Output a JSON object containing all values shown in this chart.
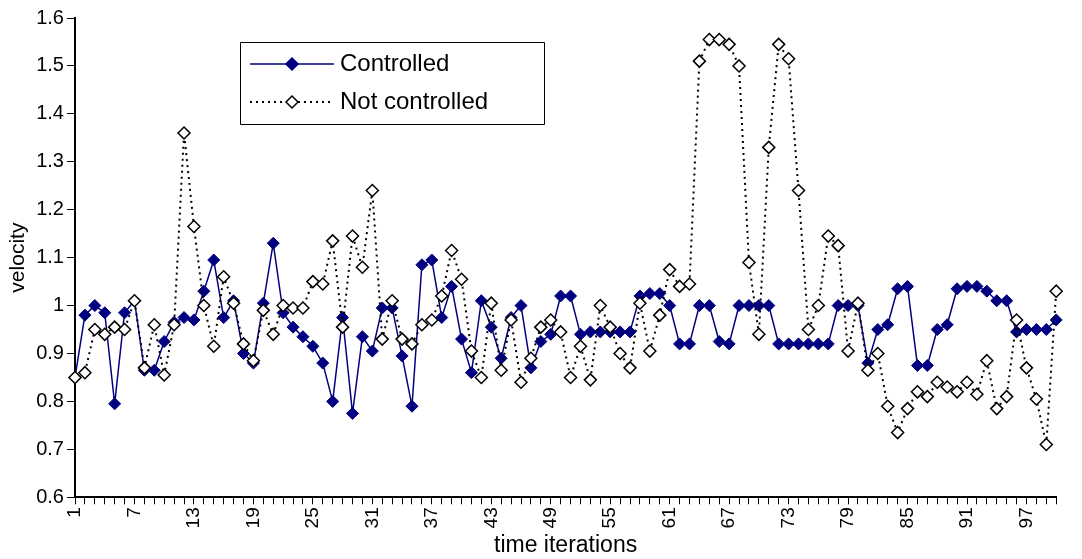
{
  "chart_data": {
    "type": "line",
    "xlabel": "time iterations",
    "ylabel": "velocity",
    "categories": [
      "1",
      null,
      null,
      null,
      null,
      null,
      "7",
      null,
      null,
      null,
      null,
      null,
      "13",
      null,
      null,
      null,
      null,
      null,
      "19",
      null,
      null,
      null,
      null,
      null,
      "25",
      null,
      null,
      null,
      null,
      null,
      "31",
      null,
      null,
      null,
      null,
      null,
      "37",
      null,
      null,
      null,
      null,
      null,
      "43",
      null,
      null,
      null,
      null,
      null,
      "49",
      null,
      null,
      null,
      null,
      null,
      "55",
      null,
      null,
      null,
      null,
      null,
      "61",
      null,
      null,
      null,
      null,
      null,
      "67",
      null,
      null,
      null,
      null,
      null,
      "73",
      null,
      null,
      null,
      null,
      null,
      "79",
      null,
      null,
      null,
      null,
      null,
      "85",
      null,
      null,
      null,
      null,
      null,
      "91",
      null,
      null,
      null,
      null,
      null,
      "97",
      null,
      null,
      null
    ],
    "series": [
      {
        "name": "Controlled",
        "color": "#000080",
        "line_style": "solid",
        "marker": "diamond",
        "values": [
          0.85,
          0.98,
          1.0,
          0.985,
          0.795,
          0.985,
          1.01,
          0.865,
          0.865,
          0.925,
          0.965,
          0.975,
          0.97,
          1.03,
          1.095,
          0.975,
          1.01,
          0.9,
          0.88,
          1.005,
          1.13,
          0.985,
          0.955,
          0.935,
          0.915,
          0.88,
          0.8,
          0.975,
          0.775,
          0.935,
          0.905,
          0.995,
          0.995,
          0.895,
          0.79,
          1.085,
          1.095,
          0.975,
          1.04,
          0.93,
          0.86,
          1.01,
          0.955,
          0.89,
          0.975,
          1.0,
          0.87,
          0.925,
          0.94,
          1.02,
          1.02,
          0.94,
          0.945,
          0.945,
          0.945,
          0.945,
          0.945,
          1.02,
          1.025,
          1.025,
          1.0,
          0.92,
          0.92,
          1.0,
          1.0,
          0.925,
          0.92,
          1.0,
          1.0,
          1.0,
          1.0,
          0.92,
          0.92,
          0.92,
          0.92,
          0.92,
          0.92,
          1.0,
          1.0,
          1.0,
          0.88,
          0.95,
          0.96,
          1.035,
          1.04,
          0.875,
          0.875,
          0.95,
          0.96,
          1.035,
          1.04,
          1.04,
          1.03,
          1.01,
          1.01,
          0.945,
          0.95,
          0.95,
          0.95,
          0.97
        ]
      },
      {
        "name": "Not controlled",
        "color": "#000000",
        "line_style": "dotted",
        "marker": "diamond",
        "values": [
          0.85,
          0.86,
          0.95,
          0.94,
          0.955,
          0.95,
          1.01,
          0.87,
          0.96,
          0.855,
          0.96,
          1.36,
          1.165,
          1.0,
          0.915,
          1.06,
          1.005,
          0.92,
          0.885,
          0.99,
          0.94,
          1.0,
          0.995,
          0.995,
          1.05,
          1.045,
          1.135,
          0.955,
          1.145,
          1.08,
          1.24,
          0.93,
          1.01,
          0.93,
          0.92,
          0.96,
          0.97,
          1.02,
          1.115,
          1.055,
          0.905,
          0.85,
          1.005,
          0.865,
          0.97,
          0.84,
          0.89,
          0.955,
          0.97,
          0.945,
          0.85,
          0.915,
          0.845,
          1.0,
          0.955,
          0.9,
          0.87,
          1.005,
          0.905,
          0.98,
          1.075,
          1.04,
          1.045,
          1.51,
          1.555,
          1.555,
          1.545,
          1.5,
          1.09,
          0.94,
          1.33,
          1.545,
          1.515,
          1.24,
          0.95,
          1.0,
          1.145,
          1.125,
          0.905,
          1.005,
          0.865,
          0.9,
          0.79,
          0.735,
          0.785,
          0.82,
          0.81,
          0.84,
          0.83,
          0.82,
          0.84,
          0.815,
          0.885,
          0.785,
          0.81,
          0.97,
          0.87,
          0.805,
          0.71,
          1.03
        ]
      }
    ],
    "ylim": [
      0.6,
      1.6
    ],
    "yticks": [
      0.6,
      0.7,
      0.8,
      0.9,
      1,
      1.1,
      1.2,
      1.3,
      1.4,
      1.5,
      1.6
    ],
    "legend": "top left"
  }
}
